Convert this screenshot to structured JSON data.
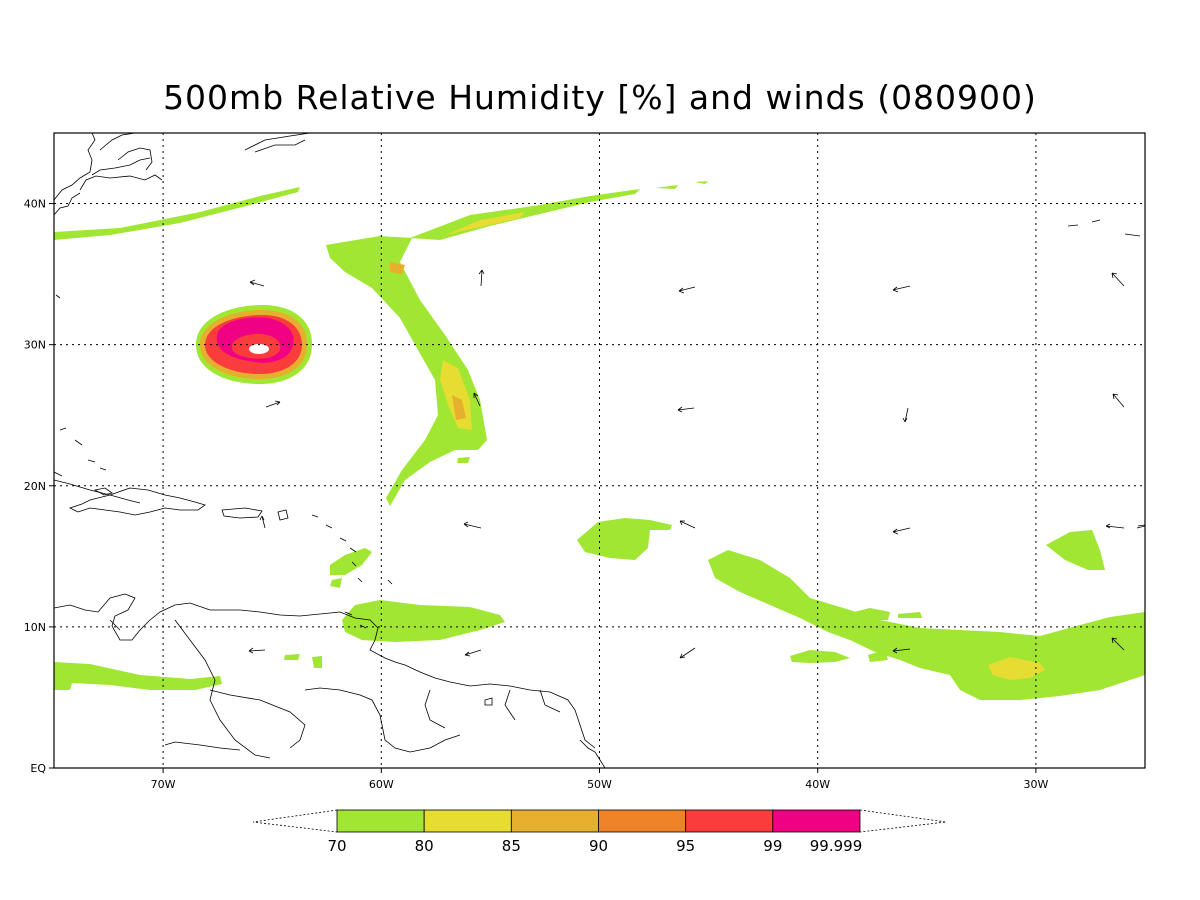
{
  "title": "500mb Relative Humidity [%] and winds (080900)",
  "axes": {
    "lon_ticks": [
      {
        "value": -70,
        "label": "70W"
      },
      {
        "value": -60,
        "label": "60W"
      },
      {
        "value": -50,
        "label": "50W"
      },
      {
        "value": -40,
        "label": "40W"
      },
      {
        "value": -30,
        "label": "30W"
      }
    ],
    "lat_ticks": [
      {
        "value": 0,
        "label": "EQ"
      },
      {
        "value": 10,
        "label": "10N"
      },
      {
        "value": 20,
        "label": "20N"
      },
      {
        "value": 30,
        "label": "30N"
      },
      {
        "value": 40,
        "label": "40N"
      }
    ],
    "lon_range": [
      -75,
      -25
    ],
    "lat_range": [
      0,
      45
    ],
    "grid": "dotted"
  },
  "colorbar": {
    "levels": [
      "70",
      "80",
      "85",
      "90",
      "95",
      "99",
      "99.999"
    ],
    "colors": [
      "#a0e632",
      "#e6dc32",
      "#e6af2d",
      "#f08228",
      "#fa3c3c",
      "#f00082"
    ]
  },
  "colors": {
    "coastline": "#000000",
    "wind_arrow": "#000000"
  }
}
